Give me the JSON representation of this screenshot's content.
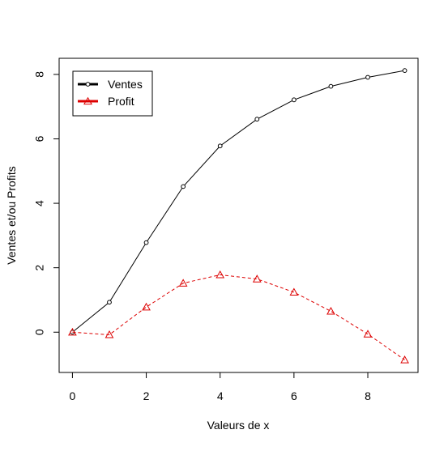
{
  "chart_data": {
    "type": "line",
    "title": "",
    "xlabel": "Valeurs de x",
    "ylabel": "Ventes et/ou Profits",
    "x": [
      0,
      1,
      2,
      3,
      4,
      5,
      6,
      7,
      8,
      9
    ],
    "xlim": [
      -0.36,
      9.36
    ],
    "ylim": [
      -1.25,
      8.5
    ],
    "xticks": [
      0,
      2,
      4,
      6,
      8
    ],
    "yticks": [
      0,
      2,
      4,
      6,
      8
    ],
    "grid": false,
    "legend_position": "top-left",
    "series": [
      {
        "name": "Ventes",
        "values": [
          0,
          0.93,
          2.78,
          4.52,
          5.78,
          6.61,
          7.21,
          7.63,
          7.91,
          8.12
        ],
        "color": "#000000",
        "line_style": "solid",
        "marker": "circle"
      },
      {
        "name": "Profit",
        "values": [
          0,
          -0.08,
          0.78,
          1.52,
          1.78,
          1.65,
          1.24,
          0.65,
          -0.06,
          -0.86
        ],
        "color": "#dd0000",
        "line_style": "dashed",
        "marker": "triangle"
      }
    ]
  }
}
